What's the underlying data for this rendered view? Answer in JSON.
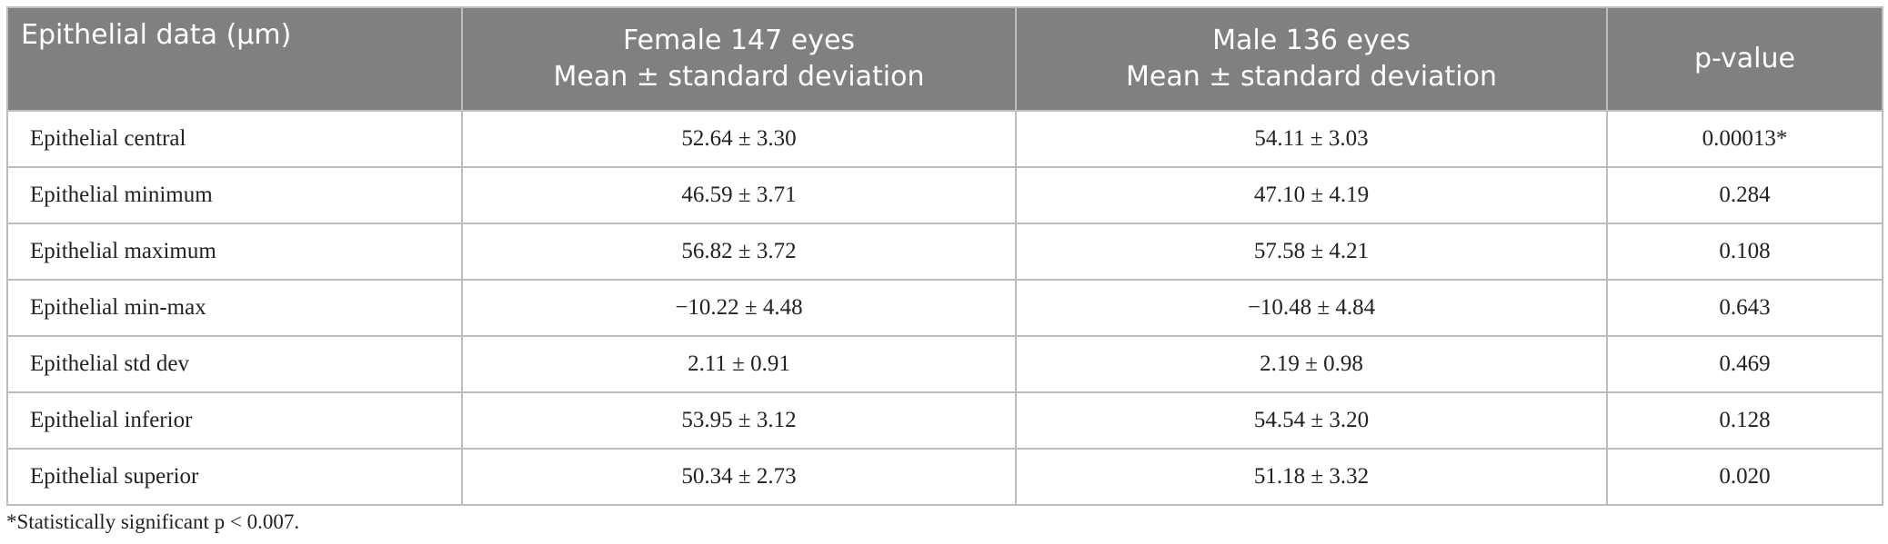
{
  "table": {
    "header": [
      [
        "Epithelial data (µm)"
      ],
      [
        "Female 147 eyes",
        "Mean ± standard deviation"
      ],
      [
        "Male 136 eyes",
        "Mean ± standard deviation"
      ],
      [
        "p-value"
      ]
    ],
    "rows": [
      [
        "Epithelial central",
        "52.64 ± 3.30",
        "54.11 ± 3.03",
        "0.00013*"
      ],
      [
        "Epithelial minimum",
        "46.59 ± 3.71",
        "47.10 ± 4.19",
        "0.284"
      ],
      [
        "Epithelial maximum",
        "56.82 ± 3.72",
        "57.58 ± 4.21",
        "0.108"
      ],
      [
        "Epithelial min-max",
        "−10.22 ± 4.48",
        "−10.48 ± 4.84",
        "0.643"
      ],
      [
        "Epithelial std dev",
        "2.11 ± 0.91",
        "2.19 ± 0.98",
        "0.469"
      ],
      [
        "Epithelial inferior",
        "53.95 ± 3.12",
        "54.54 ± 3.20",
        "0.128"
      ],
      [
        "Epithelial superior",
        "50.34 ± 2.73",
        "51.18 ± 3.32",
        "0.020"
      ]
    ],
    "footnote": "*Statistically significant p < 0.007."
  }
}
